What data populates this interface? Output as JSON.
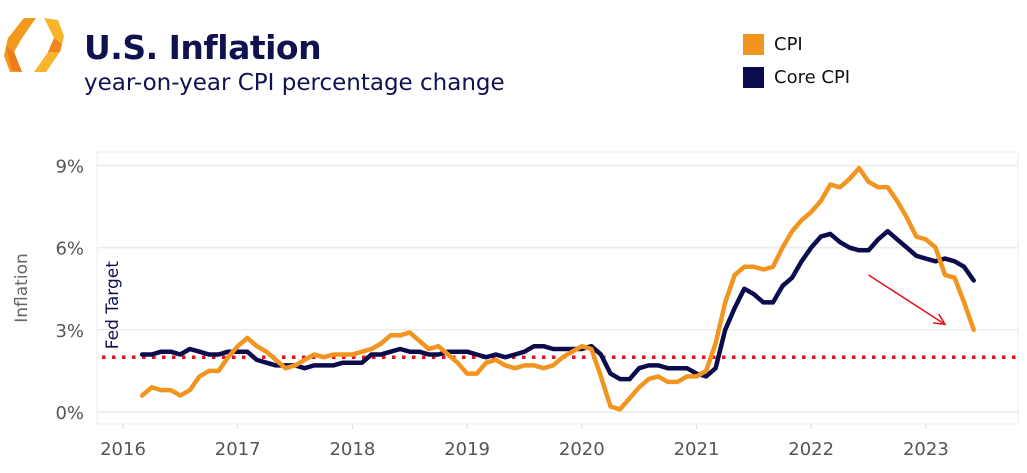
{
  "header": {
    "title": "U.S. Inflation",
    "subtitle": "year-on-year CPI percentage change"
  },
  "colors": {
    "cpi": "#f29520",
    "core": "#0b0b4d",
    "target": "#e3121b",
    "title": "#10124f"
  },
  "chart_data": {
    "type": "line",
    "title": "U.S. Inflation",
    "subtitle": "year-on-year CPI percentage change",
    "ylabel": "Inflation",
    "xlabel": "",
    "ylim": [
      0,
      9
    ],
    "yticks": [
      "0%",
      "3%",
      "6%",
      "9%"
    ],
    "xticks": [
      "2016",
      "2017",
      "2018",
      "2019",
      "2020",
      "2021",
      "2022",
      "2023"
    ],
    "grid": true,
    "legend": "top-right",
    "x_start": "2016-03",
    "x_frequency": "monthly",
    "series": [
      {
        "name": "CPI",
        "values": [
          0.6,
          0.9,
          0.8,
          0.8,
          0.6,
          0.8,
          1.3,
          1.5,
          1.5,
          2.0,
          2.4,
          2.7,
          2.4,
          2.2,
          1.9,
          1.6,
          1.7,
          1.9,
          2.1,
          2.0,
          2.1,
          2.1,
          2.1,
          2.2,
          2.3,
          2.5,
          2.8,
          2.8,
          2.9,
          2.6,
          2.3,
          2.4,
          2.1,
          1.8,
          1.4,
          1.4,
          1.8,
          1.9,
          1.7,
          1.6,
          1.7,
          1.7,
          1.6,
          1.7,
          2.0,
          2.2,
          2.4,
          2.3,
          1.3,
          0.2,
          0.1,
          0.5,
          0.9,
          1.2,
          1.3,
          1.1,
          1.1,
          1.3,
          1.3,
          1.5,
          2.5,
          4.0,
          5.0,
          5.3,
          5.3,
          5.2,
          5.3,
          6.0,
          6.6,
          7.0,
          7.3,
          7.7,
          8.3,
          8.2,
          8.5,
          8.9,
          8.4,
          8.2,
          8.2,
          7.7,
          7.1,
          6.4,
          6.3,
          6.0,
          5.0,
          4.9,
          4.0,
          3.0
        ]
      },
      {
        "name": "Core CPI",
        "values": [
          2.1,
          2.1,
          2.2,
          2.2,
          2.1,
          2.3,
          2.2,
          2.1,
          2.1,
          2.2,
          2.2,
          2.2,
          1.9,
          1.8,
          1.7,
          1.7,
          1.7,
          1.6,
          1.7,
          1.7,
          1.7,
          1.8,
          1.8,
          1.8,
          2.1,
          2.1,
          2.2,
          2.3,
          2.2,
          2.2,
          2.1,
          2.1,
          2.2,
          2.2,
          2.2,
          2.1,
          2.0,
          2.1,
          2.0,
          2.1,
          2.2,
          2.4,
          2.4,
          2.3,
          2.3,
          2.3,
          2.3,
          2.4,
          2.1,
          1.4,
          1.2,
          1.2,
          1.6,
          1.7,
          1.7,
          1.6,
          1.6,
          1.6,
          1.4,
          1.3,
          1.6,
          3.0,
          3.8,
          4.5,
          4.3,
          4.0,
          4.0,
          4.6,
          4.9,
          5.5,
          6.0,
          6.4,
          6.5,
          6.2,
          6.0,
          5.9,
          5.9,
          6.3,
          6.6,
          6.3,
          6.0,
          5.7,
          5.6,
          5.5,
          5.6,
          5.5,
          5.3,
          4.8
        ]
      }
    ],
    "reference_line": {
      "label": "Fed Target",
      "value": 2,
      "style": "dotted"
    },
    "annotations": [
      {
        "type": "arrow",
        "from": [
          "2022-07",
          5.0
        ],
        "to": [
          "2023-03",
          3.2
        ]
      }
    ]
  }
}
